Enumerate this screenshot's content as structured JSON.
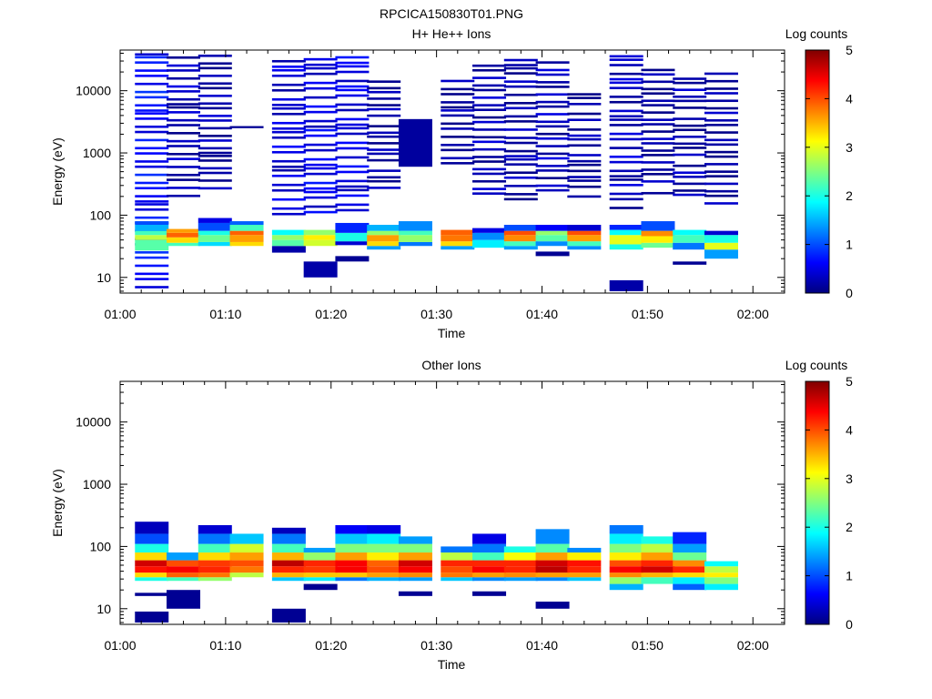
{
  "figure_title": "RPCICA150830T01.PNG",
  "colorscale": [
    "#00007f",
    "#0000ff",
    "#0080ff",
    "#00ffff",
    "#80ff80",
    "#ffff00",
    "#ff8000",
    "#ff0000",
    "#7f0000"
  ],
  "chart_data": [
    {
      "type": "heatmap",
      "title": "H+ He++ Ions",
      "xlabel": "Time",
      "ylabel": "Energy (eV)",
      "x_ticks": [
        "01:00",
        "01:10",
        "01:20",
        "01:30",
        "01:40",
        "01:50",
        "02:00"
      ],
      "y_ticks": [
        "10",
        "100",
        "1000",
        "10000"
      ],
      "yscale": "log",
      "colorbar": {
        "label": "Log counts",
        "range": [
          0,
          5
        ],
        "ticks": [
          "0",
          "1",
          "2",
          "3",
          "4",
          "5"
        ]
      },
      "time_bins": [
        "01:03",
        "01:06",
        "01:09",
        "01:12",
        "01:16",
        "01:19",
        "01:22",
        "01:25",
        "01:28",
        "01:32",
        "01:35",
        "01:38",
        "01:41",
        "01:44",
        "01:48",
        "01:51",
        "01:54",
        "01:57"
      ],
      "columns": [
        [
          [
            6,
            40000,
            0.6
          ],
          [
            27,
            40,
            2.3
          ],
          [
            40,
            48,
            2.8
          ],
          [
            48,
            56,
            2.2
          ],
          [
            56,
            70,
            1.5
          ],
          [
            70,
            80,
            1.0
          ]
        ],
        [
          [
            200,
            40000,
            0.2
          ],
          [
            32,
            36,
            2.2
          ],
          [
            36,
            44,
            3.3
          ],
          [
            44,
            52,
            3.9
          ],
          [
            52,
            60,
            3.6
          ]
        ],
        [
          [
            250,
            40000,
            0.15
          ],
          [
            32,
            37,
            1.7
          ],
          [
            37,
            48,
            2.4
          ],
          [
            48,
            56,
            2.0
          ],
          [
            56,
            75,
            1.0
          ],
          [
            75,
            90,
            0.5
          ]
        ],
        [
          [
            2500,
            2700,
            0.1
          ],
          [
            32,
            37,
            3.3
          ],
          [
            37,
            48,
            3.6
          ],
          [
            48,
            56,
            3.9
          ],
          [
            56,
            70,
            2.2
          ],
          [
            70,
            80,
            1.1
          ]
        ],
        [
          [
            25,
            32,
            0.2
          ],
          [
            100,
            40000,
            0.35
          ],
          [
            32,
            40,
            2.3
          ],
          [
            40,
            48,
            2.6
          ],
          [
            48,
            58,
            1.9
          ]
        ],
        [
          [
            10,
            18,
            0.2
          ],
          [
            100,
            40000,
            0.45
          ],
          [
            32,
            40,
            2.9
          ],
          [
            40,
            48,
            3.2
          ],
          [
            48,
            58,
            2.6
          ]
        ],
        [
          [
            18,
            22,
            0.1
          ],
          [
            100,
            40000,
            0.45
          ],
          [
            33,
            38,
            0.4
          ],
          [
            38,
            52,
            2.0
          ],
          [
            52,
            75,
            0.8
          ]
        ],
        [
          [
            200,
            15000,
            0.1
          ],
          [
            28,
            32,
            1.4
          ],
          [
            32,
            38,
            3.3
          ],
          [
            38,
            48,
            3.6
          ],
          [
            48,
            56,
            2.6
          ],
          [
            56,
            70,
            1.5
          ]
        ],
        [
          [
            600,
            3500,
            0.15
          ],
          [
            32,
            37,
            1.2
          ],
          [
            37,
            48,
            2.6
          ],
          [
            48,
            56,
            2.2
          ],
          [
            56,
            80,
            1.3
          ]
        ],
        [
          [
            600,
            17000,
            0.1
          ],
          [
            28,
            32,
            1.4
          ],
          [
            32,
            38,
            3.3
          ],
          [
            38,
            48,
            3.8
          ],
          [
            48,
            58,
            3.9
          ]
        ],
        [
          [
            200,
            30000,
            0.2
          ],
          [
            30,
            40,
            1.8
          ],
          [
            40,
            52,
            1.3
          ],
          [
            52,
            62,
            0.5
          ]
        ],
        [
          [
            150,
            35000,
            0.15
          ],
          [
            28,
            32,
            1.4
          ],
          [
            32,
            38,
            2.2
          ],
          [
            38,
            48,
            3.7
          ],
          [
            48,
            56,
            4.0
          ],
          [
            56,
            70,
            1.0
          ]
        ],
        [
          [
            22,
            26,
            0.1
          ],
          [
            200,
            30000,
            0.25
          ],
          [
            32,
            38,
            1.3
          ],
          [
            38,
            48,
            2.3
          ],
          [
            48,
            56,
            2.6
          ],
          [
            56,
            70,
            0.6
          ]
        ],
        [
          [
            200,
            11000,
            0.1
          ],
          [
            28,
            32,
            1.3
          ],
          [
            32,
            38,
            2.2
          ],
          [
            38,
            48,
            3.6
          ],
          [
            48,
            56,
            4.0
          ],
          [
            56,
            70,
            0.4
          ]
        ],
        [
          [
            6,
            9,
            0.2
          ],
          [
            120,
            40000,
            0.25
          ],
          [
            28,
            34,
            2.0
          ],
          [
            34,
            48,
            3.0
          ],
          [
            48,
            58,
            1.9
          ],
          [
            58,
            70,
            0.8
          ]
        ],
        [
          [
            200,
            25000,
            0.1
          ],
          [
            30,
            36,
            2.4
          ],
          [
            36,
            46,
            3.2
          ],
          [
            46,
            56,
            3.7
          ],
          [
            56,
            80,
            1.0
          ]
        ],
        [
          [
            16,
            18,
            0.1
          ],
          [
            180,
            17000,
            0.15
          ],
          [
            28,
            36,
            1.2
          ],
          [
            36,
            48,
            2.2
          ],
          [
            48,
            58,
            1.9
          ]
        ],
        [
          [
            160,
            23000,
            0.1
          ],
          [
            20,
            28,
            1.4
          ],
          [
            28,
            36,
            3.0
          ],
          [
            36,
            48,
            2.0
          ],
          [
            48,
            56,
            0.4
          ]
        ]
      ]
    },
    {
      "type": "heatmap",
      "title": "Other Ions",
      "xlabel": "Time",
      "ylabel": "Energy (eV)",
      "x_ticks": [
        "01:00",
        "01:10",
        "01:20",
        "01:30",
        "01:40",
        "01:50",
        "02:00"
      ],
      "y_ticks": [
        "10",
        "100",
        "1000",
        "10000"
      ],
      "yscale": "log",
      "colorbar": {
        "label": "Log counts",
        "range": [
          0,
          5
        ],
        "ticks": [
          "0",
          "1",
          "2",
          "3",
          "4",
          "5"
        ]
      },
      "time_bins": [
        "01:03",
        "01:06",
        "01:09",
        "01:12",
        "01:16",
        "01:19",
        "01:22",
        "01:25",
        "01:28",
        "01:32",
        "01:35",
        "01:38",
        "01:41",
        "01:44",
        "01:48",
        "01:51",
        "01:54",
        "01:57"
      ],
      "columns": [
        [
          [
            6,
            9,
            0.1
          ],
          [
            16,
            18,
            0.1
          ],
          [
            28,
            32,
            2.0
          ],
          [
            32,
            38,
            3.3
          ],
          [
            38,
            48,
            4.3
          ],
          [
            48,
            60,
            4.6
          ],
          [
            60,
            80,
            3.3
          ],
          [
            80,
            110,
            2.0
          ],
          [
            110,
            160,
            1.0
          ],
          [
            160,
            250,
            0.3
          ]
        ],
        [
          [
            10,
            20,
            0.1
          ],
          [
            28,
            32,
            2.2
          ],
          [
            32,
            38,
            3.9
          ],
          [
            38,
            48,
            4.4
          ],
          [
            48,
            60,
            4.0
          ],
          [
            60,
            80,
            1.4
          ]
        ],
        [
          [
            28,
            32,
            2.6
          ],
          [
            32,
            38,
            3.8
          ],
          [
            38,
            48,
            4.2
          ],
          [
            48,
            60,
            4.1
          ],
          [
            60,
            80,
            3.3
          ],
          [
            80,
            110,
            2.2
          ],
          [
            110,
            160,
            1.2
          ],
          [
            160,
            220,
            0.4
          ]
        ],
        [
          [
            32,
            38,
            2.8
          ],
          [
            38,
            48,
            3.8
          ],
          [
            48,
            60,
            4.0
          ],
          [
            60,
            80,
            3.6
          ],
          [
            80,
            110,
            2.9
          ],
          [
            110,
            160,
            1.6
          ]
        ],
        [
          [
            6,
            10,
            0.1
          ],
          [
            28,
            32,
            1.6
          ],
          [
            32,
            38,
            3.5
          ],
          [
            38,
            48,
            4.2
          ],
          [
            48,
            60,
            4.7
          ],
          [
            60,
            80,
            3.5
          ],
          [
            80,
            110,
            2.2
          ],
          [
            110,
            160,
            1.2
          ],
          [
            160,
            200,
            0.3
          ]
        ],
        [
          [
            20,
            25,
            0.1
          ],
          [
            28,
            32,
            1.8
          ],
          [
            32,
            38,
            3.4
          ],
          [
            38,
            48,
            4.1
          ],
          [
            48,
            60,
            4.2
          ],
          [
            60,
            80,
            2.6
          ],
          [
            80,
            95,
            1.4
          ]
        ],
        [
          [
            28,
            32,
            1.2
          ],
          [
            32,
            38,
            3.4
          ],
          [
            38,
            48,
            4.4
          ],
          [
            48,
            60,
            4.4
          ],
          [
            60,
            80,
            3.6
          ],
          [
            80,
            110,
            2.5
          ],
          [
            110,
            160,
            1.6
          ],
          [
            160,
            220,
            0.6
          ]
        ],
        [
          [
            28,
            32,
            1.5
          ],
          [
            32,
            38,
            3.6
          ],
          [
            38,
            48,
            4.0
          ],
          [
            48,
            60,
            3.9
          ],
          [
            60,
            80,
            3.2
          ],
          [
            80,
            110,
            2.5
          ],
          [
            110,
            160,
            1.8
          ],
          [
            160,
            220,
            0.5
          ]
        ],
        [
          [
            16,
            19,
            0.1
          ],
          [
            28,
            32,
            1.4
          ],
          [
            32,
            38,
            3.7
          ],
          [
            38,
            48,
            4.4
          ],
          [
            48,
            60,
            4.6
          ],
          [
            60,
            80,
            3.6
          ],
          [
            80,
            110,
            2.5
          ],
          [
            110,
            145,
            1.4
          ]
        ],
        [
          [
            28,
            32,
            1.6
          ],
          [
            32,
            38,
            3.8
          ],
          [
            38,
            48,
            4.0
          ],
          [
            48,
            60,
            4.2
          ],
          [
            60,
            80,
            2.8
          ],
          [
            80,
            100,
            1.2
          ]
        ],
        [
          [
            16,
            19,
            0.1
          ],
          [
            28,
            32,
            1.3
          ],
          [
            32,
            38,
            3.6
          ],
          [
            38,
            48,
            4.4
          ],
          [
            48,
            60,
            4.2
          ],
          [
            60,
            80,
            2.2
          ],
          [
            80,
            110,
            1.2
          ],
          [
            110,
            160,
            0.5
          ]
        ],
        [
          [
            28,
            32,
            1.4
          ],
          [
            32,
            38,
            3.7
          ],
          [
            38,
            48,
            4.2
          ],
          [
            48,
            60,
            4.2
          ],
          [
            60,
            80,
            3.1
          ],
          [
            80,
            100,
            2.0
          ]
        ],
        [
          [
            10,
            13,
            0.1
          ],
          [
            28,
            32,
            1.3
          ],
          [
            32,
            38,
            3.6
          ],
          [
            38,
            48,
            4.7
          ],
          [
            48,
            60,
            4.6
          ],
          [
            60,
            80,
            3.6
          ],
          [
            80,
            110,
            2.3
          ],
          [
            110,
            190,
            1.3
          ]
        ],
        [
          [
            28,
            32,
            1.6
          ],
          [
            32,
            38,
            3.6
          ],
          [
            38,
            48,
            4.2
          ],
          [
            48,
            60,
            4.3
          ],
          [
            60,
            80,
            3.2
          ],
          [
            80,
            95,
            1.3
          ]
        ],
        [
          [
            20,
            25,
            1.5
          ],
          [
            25,
            32,
            2.6
          ],
          [
            32,
            38,
            3.7
          ],
          [
            38,
            48,
            4.4
          ],
          [
            48,
            60,
            4.0
          ],
          [
            60,
            80,
            3.2
          ],
          [
            80,
            110,
            2.5
          ],
          [
            110,
            160,
            1.8
          ],
          [
            160,
            220,
            1.2
          ]
        ],
        [
          [
            25,
            32,
            2.2
          ],
          [
            32,
            38,
            3.5
          ],
          [
            38,
            48,
            4.6
          ],
          [
            48,
            60,
            4.2
          ],
          [
            60,
            80,
            3.6
          ],
          [
            80,
            110,
            2.8
          ],
          [
            110,
            145,
            2.0
          ]
        ],
        [
          [
            20,
            25,
            1.1
          ],
          [
            25,
            32,
            1.8
          ],
          [
            32,
            38,
            3.3
          ],
          [
            38,
            48,
            4.2
          ],
          [
            48,
            60,
            3.7
          ],
          [
            60,
            80,
            2.4
          ],
          [
            80,
            110,
            1.4
          ],
          [
            110,
            170,
            0.8
          ]
        ],
        [
          [
            20,
            25,
            1.8
          ],
          [
            25,
            32,
            2.5
          ],
          [
            32,
            38,
            3.2
          ],
          [
            38,
            48,
            2.8
          ],
          [
            48,
            58,
            1.9
          ]
        ]
      ]
    }
  ]
}
